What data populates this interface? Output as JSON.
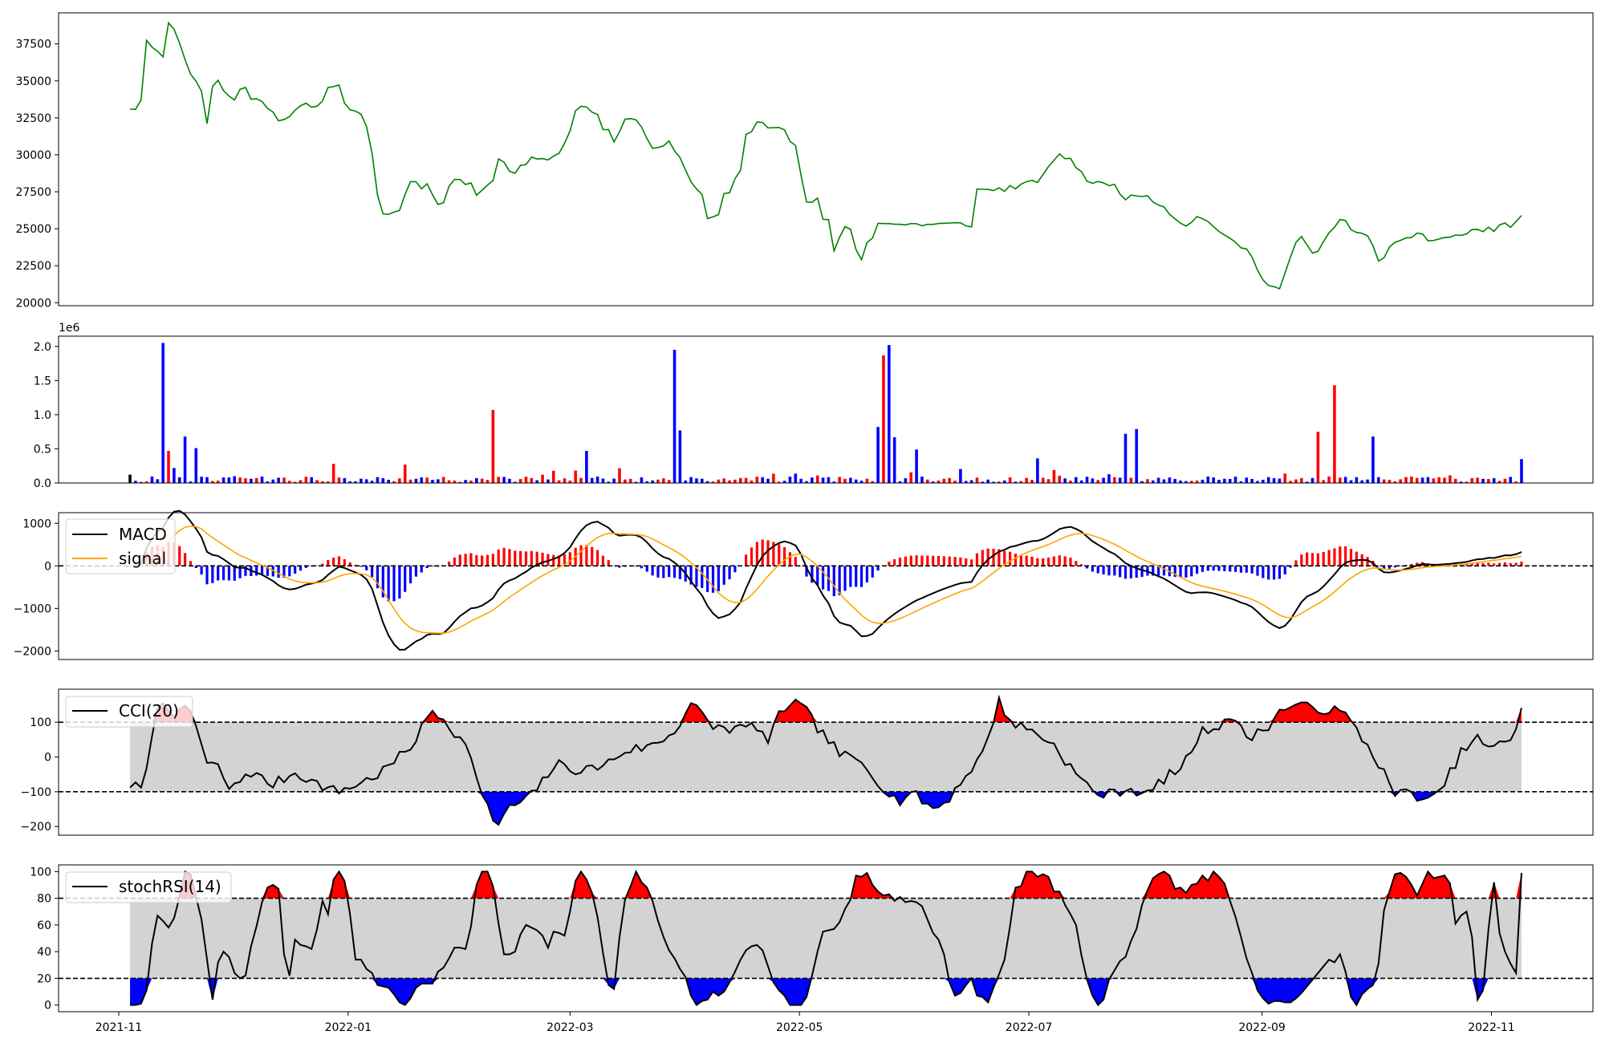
{
  "colors": {
    "price_line": "#008000",
    "up": "#ff0000",
    "down": "#0000ff",
    "neutral": "#000000",
    "macd_line": "#000000",
    "signal_line": "#ffa500",
    "band_fill": "#d3d3d3",
    "frame": "#000000"
  },
  "chart_data": [
    {
      "type": "line",
      "panel": "price",
      "series": [
        {
          "values": []
        }
      ],
      "ylim": [
        19800,
        39600
      ],
      "yticks": [
        "20000",
        "22500",
        "25000",
        "27500",
        "30000",
        "32500",
        "35000",
        "37500"
      ]
    },
    {
      "type": "bar",
      "panel": "volume",
      "scale_label": "1e6",
      "ylim": [
        0,
        2.15
      ],
      "yticks": [
        "0.0",
        "0.5",
        "1.0",
        "1.5",
        "2.0"
      ],
      "values": []
    },
    {
      "type": "line",
      "panel": "macd",
      "legend": [
        "MACD",
        "signal"
      ],
      "legend_position": "upper-left",
      "ylim": [
        -2200,
        1250
      ],
      "yticks": [
        "−2000",
        "−1000",
        "0",
        "1000"
      ],
      "reference_line": 0,
      "series": [
        {
          "name": "MACD",
          "values": []
        },
        {
          "name": "signal",
          "values": []
        }
      ],
      "histogram": []
    },
    {
      "type": "line",
      "panel": "cci",
      "legend": [
        "CCI(20)"
      ],
      "legend_position": "upper-left",
      "ylim": [
        -225,
        195
      ],
      "yticks": [
        "−200",
        "−100",
        "0",
        "100"
      ],
      "thresholds": [
        100,
        -100
      ],
      "series": [
        {
          "name": "CCI(20)",
          "values": []
        }
      ]
    },
    {
      "type": "line",
      "panel": "stochrsi",
      "legend": [
        "stochRSI(14)"
      ],
      "legend_position": "upper-left",
      "ylim": [
        -5,
        105
      ],
      "yticks": [
        "0",
        "20",
        "40",
        "60",
        "80",
        "100"
      ],
      "thresholds": [
        80,
        20
      ],
      "series": [
        {
          "name": "stochRSI(14)",
          "values": []
        }
      ],
      "x_start": "2021-11-04",
      "x_end": "2022-11-09",
      "xlim": [
        "2021-10-16",
        "2022-11-28"
      ],
      "xticks": [
        "2021-11",
        "2022-01",
        "2022-03",
        "2022-05",
        "2022-07",
        "2022-09",
        "2022-11"
      ]
    }
  ]
}
